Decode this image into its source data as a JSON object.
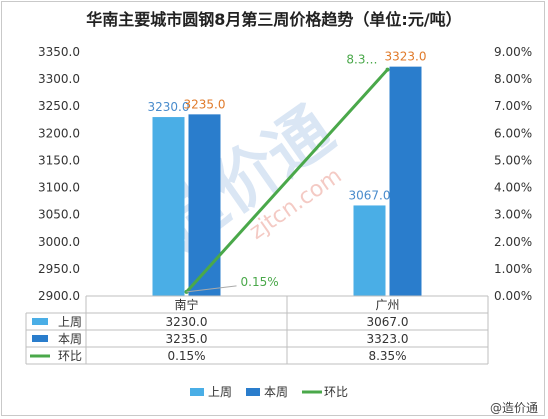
{
  "chart_data": {
    "type": "bar",
    "title": "华南主要城市圆钢8月第三周价格趋势（单位:元/吨）",
    "categories": [
      "南宁",
      "广州"
    ],
    "series": [
      {
        "name": "上周",
        "type": "bar",
        "axis": "left",
        "color": "#4aaee6",
        "values": [
          3230.0,
          3067.0
        ],
        "labels": [
          "3230.0",
          "3067.0"
        ]
      },
      {
        "name": "本周",
        "type": "bar",
        "axis": "left",
        "color": "#2a7dcc",
        "values": [
          3235.0,
          3323.0
        ],
        "labels": [
          "3235.0",
          "3323.0"
        ]
      },
      {
        "name": "环比",
        "type": "line",
        "axis": "right",
        "color": "#4aa84a",
        "values": [
          0.15,
          8.35
        ],
        "labels": [
          "0.15%",
          "8.3…"
        ]
      }
    ],
    "y_left": {
      "min": 2900,
      "max": 3350,
      "ticks": [
        "2900.0",
        "2950.0",
        "3000.0",
        "3050.0",
        "3100.0",
        "3150.0",
        "3200.0",
        "3250.0",
        "3300.0",
        "3350.0"
      ]
    },
    "y_right": {
      "min": 0,
      "max": 9,
      "unit": "%",
      "ticks": [
        "0.00%",
        "1.00%",
        "2.00%",
        "3.00%",
        "4.00%",
        "5.00%",
        "6.00%",
        "7.00%",
        "8.00%",
        "9.00%"
      ]
    },
    "data_table": {
      "rows": [
        {
          "name": "上周",
          "cells": [
            "3230.0",
            "3067.0"
          ]
        },
        {
          "name": "本周",
          "cells": [
            "3235.0",
            "3323.0"
          ]
        },
        {
          "name": "环比",
          "cells": [
            "0.15%",
            "8.35%"
          ]
        }
      ]
    },
    "legend": {
      "position": "bottom",
      "items": [
        "上周",
        "本周",
        "环比"
      ]
    },
    "grid": false
  },
  "watermark": {
    "brand": "@造价通",
    "url": "zjtcn.com"
  },
  "colors": {
    "bar_last_week": "#4aaee6",
    "bar_this_week": "#2a7dcc",
    "line": "#4aa84a",
    "label_last_week": "#4a8ccc",
    "label_this_week": "#e07a2a"
  }
}
